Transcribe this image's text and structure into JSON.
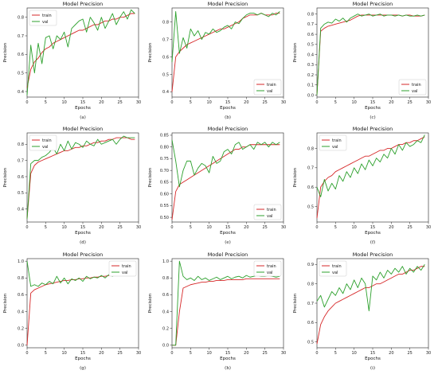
{
  "chart_data": [
    {
      "type": "line",
      "panel_label": "(a)",
      "title": "Model Precision",
      "xlabel": "Epochs",
      "ylabel": "Precision",
      "legend": "top-left",
      "xlim": [
        0,
        30
      ],
      "ylim": [
        0.37,
        0.85
      ],
      "xticks": [
        0,
        5,
        10,
        15,
        20,
        25,
        30
      ],
      "yticks": [
        0.4,
        0.5,
        0.6,
        0.7,
        0.8
      ],
      "series": [
        {
          "name": "train",
          "color": "#d62728",
          "values": [
            0.42,
            0.52,
            0.56,
            0.58,
            0.61,
            0.63,
            0.64,
            0.66,
            0.67,
            0.68,
            0.69,
            0.7,
            0.71,
            0.72,
            0.73,
            0.73,
            0.74,
            0.75,
            0.76,
            0.76,
            0.77,
            0.78,
            0.78,
            0.79,
            0.79,
            0.8,
            0.8,
            0.81,
            0.82,
            0.82
          ]
        },
        {
          "name": "val",
          "color": "#2ca02c",
          "values": [
            0.38,
            0.65,
            0.5,
            0.66,
            0.55,
            0.69,
            0.7,
            0.63,
            0.7,
            0.68,
            0.72,
            0.64,
            0.74,
            0.76,
            0.78,
            0.79,
            0.72,
            0.8,
            0.77,
            0.73,
            0.8,
            0.74,
            0.78,
            0.82,
            0.76,
            0.8,
            0.83,
            0.79,
            0.84,
            0.82
          ]
        }
      ]
    },
    {
      "type": "line",
      "panel_label": "(b)",
      "title": "Model Precision",
      "xlabel": "Epochs",
      "ylabel": "Precision",
      "legend": "bottom-right",
      "xlim": [
        0,
        30
      ],
      "ylim": [
        0.37,
        0.88
      ],
      "xticks": [
        0,
        5,
        10,
        15,
        20,
        25,
        30
      ],
      "yticks": [
        0.4,
        0.5,
        0.6,
        0.7,
        0.8
      ],
      "series": [
        {
          "name": "train",
          "color": "#d62728",
          "values": [
            0.4,
            0.6,
            0.63,
            0.65,
            0.67,
            0.68,
            0.69,
            0.7,
            0.71,
            0.72,
            0.73,
            0.74,
            0.75,
            0.76,
            0.76,
            0.77,
            0.78,
            0.79,
            0.8,
            0.82,
            0.83,
            0.84,
            0.84,
            0.84,
            0.85,
            0.84,
            0.84,
            0.84,
            0.85,
            0.85
          ]
        },
        {
          "name": "val",
          "color": "#2ca02c",
          "values": [
            0.57,
            0.86,
            0.62,
            0.71,
            0.65,
            0.76,
            0.72,
            0.75,
            0.7,
            0.74,
            0.73,
            0.76,
            0.74,
            0.75,
            0.77,
            0.78,
            0.76,
            0.8,
            0.79,
            0.82,
            0.84,
            0.85,
            0.85,
            0.84,
            0.85,
            0.84,
            0.83,
            0.85,
            0.84,
            0.86
          ]
        }
      ]
    },
    {
      "type": "line",
      "panel_label": "(c)",
      "title": "Model Precision",
      "xlabel": "Epochs",
      "ylabel": "Precision",
      "legend": "bottom-right",
      "xlim": [
        0,
        30
      ],
      "ylim": [
        -0.02,
        0.86
      ],
      "xticks": [
        0,
        5,
        10,
        15,
        20,
        25,
        30
      ],
      "yticks": [
        0.0,
        0.1,
        0.2,
        0.3,
        0.4,
        0.5,
        0.6,
        0.7,
        0.8
      ],
      "series": [
        {
          "name": "train",
          "color": "#d62728",
          "values": [
            0.0,
            0.63,
            0.66,
            0.68,
            0.69,
            0.7,
            0.71,
            0.72,
            0.73,
            0.74,
            0.76,
            0.78,
            0.79,
            0.79,
            0.79,
            0.79,
            0.79,
            0.79,
            0.79,
            0.79,
            0.79,
            0.79,
            0.79,
            0.78,
            0.79,
            0.79,
            0.78,
            0.78,
            0.78,
            0.79
          ]
        },
        {
          "name": "val",
          "color": "#2ca02c",
          "values": [
            0.0,
            0.66,
            0.7,
            0.72,
            0.71,
            0.75,
            0.73,
            0.76,
            0.72,
            0.76,
            0.78,
            0.8,
            0.78,
            0.79,
            0.8,
            0.78,
            0.79,
            0.8,
            0.78,
            0.79,
            0.79,
            0.78,
            0.79,
            0.78,
            0.79,
            0.78,
            0.78,
            0.79,
            0.78,
            0.79
          ]
        }
      ]
    },
    {
      "type": "line",
      "panel_label": "(d)",
      "title": "Model Precision",
      "xlabel": "Epochs",
      "ylabel": "Precision",
      "legend": "top-left",
      "xlim": [
        0,
        30
      ],
      "ylim": [
        0.32,
        0.87
      ],
      "xticks": [
        0,
        5,
        10,
        15,
        20,
        25,
        30
      ],
      "yticks": [
        0.4,
        0.5,
        0.6,
        0.7,
        0.8
      ],
      "series": [
        {
          "name": "train",
          "color": "#d62728",
          "values": [
            0.34,
            0.62,
            0.67,
            0.69,
            0.7,
            0.71,
            0.72,
            0.73,
            0.74,
            0.75,
            0.76,
            0.76,
            0.77,
            0.78,
            0.78,
            0.79,
            0.79,
            0.8,
            0.81,
            0.81,
            0.82,
            0.82,
            0.83,
            0.83,
            0.84,
            0.84,
            0.84,
            0.84,
            0.83,
            0.83
          ]
        },
        {
          "name": "val",
          "color": "#2ca02c",
          "values": [
            0.34,
            0.68,
            0.7,
            0.7,
            0.72,
            0.73,
            0.75,
            0.78,
            0.74,
            0.8,
            0.76,
            0.82,
            0.77,
            0.81,
            0.8,
            0.78,
            0.82,
            0.8,
            0.79,
            0.83,
            0.8,
            0.81,
            0.82,
            0.83,
            0.8,
            0.83,
            0.85,
            0.84,
            0.84,
            0.84
          ]
        }
      ]
    },
    {
      "type": "line",
      "panel_label": "(e)",
      "title": "Model Precision",
      "xlabel": "Epochs",
      "ylabel": "Precision",
      "legend": "bottom-right",
      "xlim": [
        0,
        30
      ],
      "ylim": [
        0.48,
        0.86
      ],
      "xticks": [
        0,
        5,
        10,
        15,
        20,
        25,
        30
      ],
      "yticks": [
        0.5,
        0.55,
        0.6,
        0.65,
        0.7,
        0.75,
        0.8,
        0.85
      ],
      "series": [
        {
          "name": "train",
          "color": "#d62728",
          "values": [
            0.49,
            0.61,
            0.64,
            0.65,
            0.66,
            0.67,
            0.68,
            0.69,
            0.7,
            0.71,
            0.72,
            0.73,
            0.74,
            0.75,
            0.76,
            0.77,
            0.78,
            0.79,
            0.79,
            0.8,
            0.8,
            0.81,
            0.81,
            0.81,
            0.81,
            0.81,
            0.81,
            0.81,
            0.81,
            0.81
          ]
        },
        {
          "name": "val",
          "color": "#2ca02c",
          "values": [
            0.83,
            0.74,
            0.63,
            0.7,
            0.74,
            0.74,
            0.68,
            0.71,
            0.73,
            0.72,
            0.69,
            0.76,
            0.73,
            0.74,
            0.78,
            0.79,
            0.77,
            0.81,
            0.82,
            0.79,
            0.8,
            0.81,
            0.79,
            0.82,
            0.81,
            0.82,
            0.8,
            0.82,
            0.81,
            0.82
          ]
        }
      ]
    },
    {
      "type": "line",
      "panel_label": "(f)",
      "title": "Model Precision",
      "xlabel": "Epochs",
      "ylabel": "Precision",
      "legend": "top-left",
      "xlim": [
        0,
        30
      ],
      "ylim": [
        0.42,
        0.88
      ],
      "xticks": [
        0,
        5,
        10,
        15,
        20,
        25,
        30
      ],
      "yticks": [
        0.5,
        0.6,
        0.7,
        0.8
      ],
      "series": [
        {
          "name": "train",
          "color": "#d62728",
          "values": [
            0.44,
            0.6,
            0.63,
            0.65,
            0.66,
            0.68,
            0.69,
            0.7,
            0.71,
            0.72,
            0.73,
            0.74,
            0.75,
            0.76,
            0.76,
            0.77,
            0.78,
            0.79,
            0.79,
            0.8,
            0.8,
            0.81,
            0.82,
            0.82,
            0.83,
            0.83,
            0.84,
            0.84,
            0.85,
            0.86
          ]
        },
        {
          "name": "val",
          "color": "#2ca02c",
          "values": [
            0.6,
            0.55,
            0.64,
            0.58,
            0.62,
            0.59,
            0.66,
            0.63,
            0.68,
            0.65,
            0.7,
            0.67,
            0.72,
            0.69,
            0.74,
            0.71,
            0.75,
            0.73,
            0.77,
            0.75,
            0.8,
            0.77,
            0.82,
            0.79,
            0.83,
            0.81,
            0.82,
            0.84,
            0.83,
            0.87
          ]
        }
      ]
    },
    {
      "type": "line",
      "panel_label": "(g)",
      "title": "Model Precision",
      "xlabel": "Epochs",
      "ylabel": "Precision",
      "legend": "top-right",
      "xlim": [
        0,
        30
      ],
      "ylim": [
        -0.03,
        1.03
      ],
      "xticks": [
        0,
        5,
        10,
        15,
        20,
        25,
        30
      ],
      "yticks": [
        0.0,
        0.2,
        0.4,
        0.6,
        0.8,
        1.0
      ],
      "series": [
        {
          "name": "train",
          "color": "#d62728",
          "values": [
            0.0,
            0.62,
            0.66,
            0.68,
            0.7,
            0.72,
            0.73,
            0.74,
            0.75,
            0.76,
            0.77,
            0.77,
            0.78,
            0.78,
            0.79,
            0.79,
            0.8,
            0.8,
            0.81,
            0.81,
            0.82,
            0.82,
            0.83,
            0.83,
            0.84,
            0.84,
            0.85,
            0.85,
            0.86,
            0.86
          ]
        },
        {
          "name": "val",
          "color": "#2ca02c",
          "values": [
            1.0,
            0.7,
            0.72,
            0.7,
            0.74,
            0.72,
            0.76,
            0.73,
            0.82,
            0.74,
            0.8,
            0.73,
            0.79,
            0.77,
            0.8,
            0.76,
            0.82,
            0.79,
            0.81,
            0.8,
            0.83,
            0.8,
            0.84,
            0.82,
            0.85,
            0.83,
            0.86,
            0.84,
            0.87,
            0.86
          ]
        }
      ]
    },
    {
      "type": "line",
      "panel_label": "(h)",
      "title": "Model Precision",
      "xlabel": "Epochs",
      "ylabel": "Precision",
      "legend": "top-right",
      "xlim": [
        0,
        30
      ],
      "ylim": [
        -0.03,
        1.03
      ],
      "xticks": [
        0,
        5,
        10,
        15,
        20,
        25,
        30
      ],
      "yticks": [
        0.0,
        0.2,
        0.4,
        0.6,
        0.8,
        1.0
      ],
      "series": [
        {
          "name": "train",
          "color": "#d62728",
          "values": [
            0.0,
            0.0,
            0.4,
            0.68,
            0.7,
            0.72,
            0.73,
            0.74,
            0.75,
            0.75,
            0.76,
            0.76,
            0.77,
            0.77,
            0.77,
            0.78,
            0.78,
            0.78,
            0.78,
            0.78,
            0.79,
            0.79,
            0.79,
            0.79,
            0.79,
            0.79,
            0.79,
            0.79,
            0.79,
            0.79
          ]
        },
        {
          "name": "val",
          "color": "#2ca02c",
          "values": [
            0.0,
            0.0,
            1.0,
            0.82,
            0.78,
            0.8,
            0.77,
            0.82,
            0.78,
            0.8,
            0.77,
            0.79,
            0.81,
            0.78,
            0.8,
            0.82,
            0.79,
            0.81,
            0.82,
            0.8,
            0.83,
            0.81,
            0.82,
            0.83,
            0.82,
            0.82,
            0.83,
            0.82,
            0.81,
            0.82
          ]
        }
      ]
    },
    {
      "type": "line",
      "panel_label": "(i)",
      "title": "Model Precision",
      "xlabel": "Epochs",
      "ylabel": "Precision",
      "legend": "top-left",
      "xlim": [
        0,
        30
      ],
      "ylim": [
        0.47,
        0.93
      ],
      "xticks": [
        0,
        5,
        10,
        15,
        20,
        25,
        30
      ],
      "yticks": [
        0.5,
        0.6,
        0.7,
        0.8,
        0.9
      ],
      "series": [
        {
          "name": "train",
          "color": "#d62728",
          "values": [
            0.49,
            0.59,
            0.63,
            0.66,
            0.68,
            0.7,
            0.71,
            0.72,
            0.73,
            0.74,
            0.75,
            0.76,
            0.77,
            0.78,
            0.78,
            0.79,
            0.8,
            0.8,
            0.81,
            0.82,
            0.83,
            0.84,
            0.85,
            0.85,
            0.86,
            0.87,
            0.87,
            0.88,
            0.89,
            0.89
          ]
        },
        {
          "name": "val",
          "color": "#2ca02c",
          "values": [
            0.71,
            0.74,
            0.68,
            0.72,
            0.76,
            0.74,
            0.78,
            0.75,
            0.8,
            0.77,
            0.82,
            0.78,
            0.83,
            0.8,
            0.66,
            0.84,
            0.82,
            0.86,
            0.83,
            0.87,
            0.85,
            0.88,
            0.86,
            0.89,
            0.85,
            0.88,
            0.86,
            0.89,
            0.87,
            0.9
          ]
        }
      ]
    }
  ]
}
